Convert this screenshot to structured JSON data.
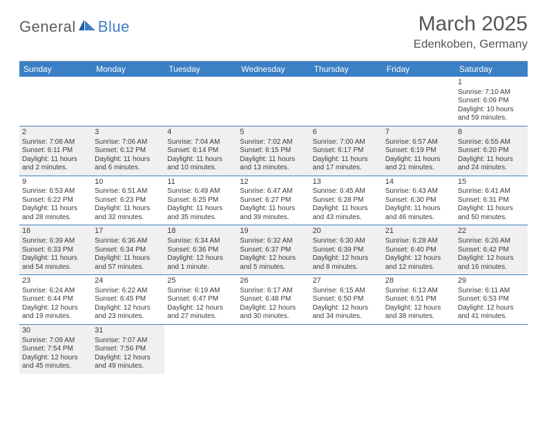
{
  "logo": {
    "general": "General",
    "blue": "Blue"
  },
  "title": "March 2025",
  "location": "Edenkoben, Germany",
  "colors": {
    "header_bg": "#3b7fc4",
    "header_text": "#ffffff",
    "shaded_bg": "#f0f0f0",
    "row_border": "#3b7fc4",
    "text": "#3a3a3a",
    "title_text": "#555555"
  },
  "day_headers": [
    "Sunday",
    "Monday",
    "Tuesday",
    "Wednesday",
    "Thursday",
    "Friday",
    "Saturday"
  ],
  "weeks": [
    [
      {
        "empty": true
      },
      {
        "empty": true
      },
      {
        "empty": true
      },
      {
        "empty": true
      },
      {
        "empty": true
      },
      {
        "empty": true
      },
      {
        "num": "1",
        "shaded": false,
        "sunrise": "Sunrise: 7:10 AM",
        "sunset": "Sunset: 6:09 PM",
        "day1": "Daylight: 10 hours",
        "day2": "and 59 minutes."
      }
    ],
    [
      {
        "num": "2",
        "shaded": true,
        "sunrise": "Sunrise: 7:08 AM",
        "sunset": "Sunset: 6:11 PM",
        "day1": "Daylight: 11 hours",
        "day2": "and 2 minutes."
      },
      {
        "num": "3",
        "shaded": true,
        "sunrise": "Sunrise: 7:06 AM",
        "sunset": "Sunset: 6:12 PM",
        "day1": "Daylight: 11 hours",
        "day2": "and 6 minutes."
      },
      {
        "num": "4",
        "shaded": true,
        "sunrise": "Sunrise: 7:04 AM",
        "sunset": "Sunset: 6:14 PM",
        "day1": "Daylight: 11 hours",
        "day2": "and 10 minutes."
      },
      {
        "num": "5",
        "shaded": true,
        "sunrise": "Sunrise: 7:02 AM",
        "sunset": "Sunset: 6:15 PM",
        "day1": "Daylight: 11 hours",
        "day2": "and 13 minutes."
      },
      {
        "num": "6",
        "shaded": true,
        "sunrise": "Sunrise: 7:00 AM",
        "sunset": "Sunset: 6:17 PM",
        "day1": "Daylight: 11 hours",
        "day2": "and 17 minutes."
      },
      {
        "num": "7",
        "shaded": true,
        "sunrise": "Sunrise: 6:57 AM",
        "sunset": "Sunset: 6:19 PM",
        "day1": "Daylight: 11 hours",
        "day2": "and 21 minutes."
      },
      {
        "num": "8",
        "shaded": true,
        "sunrise": "Sunrise: 6:55 AM",
        "sunset": "Sunset: 6:20 PM",
        "day1": "Daylight: 11 hours",
        "day2": "and 24 minutes."
      }
    ],
    [
      {
        "num": "9",
        "shaded": false,
        "sunrise": "Sunrise: 6:53 AM",
        "sunset": "Sunset: 6:22 PM",
        "day1": "Daylight: 11 hours",
        "day2": "and 28 minutes."
      },
      {
        "num": "10",
        "shaded": false,
        "sunrise": "Sunrise: 6:51 AM",
        "sunset": "Sunset: 6:23 PM",
        "day1": "Daylight: 11 hours",
        "day2": "and 32 minutes."
      },
      {
        "num": "11",
        "shaded": false,
        "sunrise": "Sunrise: 6:49 AM",
        "sunset": "Sunset: 6:25 PM",
        "day1": "Daylight: 11 hours",
        "day2": "and 35 minutes."
      },
      {
        "num": "12",
        "shaded": false,
        "sunrise": "Sunrise: 6:47 AM",
        "sunset": "Sunset: 6:27 PM",
        "day1": "Daylight: 11 hours",
        "day2": "and 39 minutes."
      },
      {
        "num": "13",
        "shaded": false,
        "sunrise": "Sunrise: 6:45 AM",
        "sunset": "Sunset: 6:28 PM",
        "day1": "Daylight: 11 hours",
        "day2": "and 43 minutes."
      },
      {
        "num": "14",
        "shaded": false,
        "sunrise": "Sunrise: 6:43 AM",
        "sunset": "Sunset: 6:30 PM",
        "day1": "Daylight: 11 hours",
        "day2": "and 46 minutes."
      },
      {
        "num": "15",
        "shaded": false,
        "sunrise": "Sunrise: 6:41 AM",
        "sunset": "Sunset: 6:31 PM",
        "day1": "Daylight: 11 hours",
        "day2": "and 50 minutes."
      }
    ],
    [
      {
        "num": "16",
        "shaded": true,
        "sunrise": "Sunrise: 6:39 AM",
        "sunset": "Sunset: 6:33 PM",
        "day1": "Daylight: 11 hours",
        "day2": "and 54 minutes."
      },
      {
        "num": "17",
        "shaded": true,
        "sunrise": "Sunrise: 6:36 AM",
        "sunset": "Sunset: 6:34 PM",
        "day1": "Daylight: 11 hours",
        "day2": "and 57 minutes."
      },
      {
        "num": "18",
        "shaded": true,
        "sunrise": "Sunrise: 6:34 AM",
        "sunset": "Sunset: 6:36 PM",
        "day1": "Daylight: 12 hours",
        "day2": "and 1 minute."
      },
      {
        "num": "19",
        "shaded": true,
        "sunrise": "Sunrise: 6:32 AM",
        "sunset": "Sunset: 6:37 PM",
        "day1": "Daylight: 12 hours",
        "day2": "and 5 minutes."
      },
      {
        "num": "20",
        "shaded": true,
        "sunrise": "Sunrise: 6:30 AM",
        "sunset": "Sunset: 6:39 PM",
        "day1": "Daylight: 12 hours",
        "day2": "and 8 minutes."
      },
      {
        "num": "21",
        "shaded": true,
        "sunrise": "Sunrise: 6:28 AM",
        "sunset": "Sunset: 6:40 PM",
        "day1": "Daylight: 12 hours",
        "day2": "and 12 minutes."
      },
      {
        "num": "22",
        "shaded": true,
        "sunrise": "Sunrise: 6:26 AM",
        "sunset": "Sunset: 6:42 PM",
        "day1": "Daylight: 12 hours",
        "day2": "and 16 minutes."
      }
    ],
    [
      {
        "num": "23",
        "shaded": false,
        "sunrise": "Sunrise: 6:24 AM",
        "sunset": "Sunset: 6:44 PM",
        "day1": "Daylight: 12 hours",
        "day2": "and 19 minutes."
      },
      {
        "num": "24",
        "shaded": false,
        "sunrise": "Sunrise: 6:22 AM",
        "sunset": "Sunset: 6:45 PM",
        "day1": "Daylight: 12 hours",
        "day2": "and 23 minutes."
      },
      {
        "num": "25",
        "shaded": false,
        "sunrise": "Sunrise: 6:19 AM",
        "sunset": "Sunset: 6:47 PM",
        "day1": "Daylight: 12 hours",
        "day2": "and 27 minutes."
      },
      {
        "num": "26",
        "shaded": false,
        "sunrise": "Sunrise: 6:17 AM",
        "sunset": "Sunset: 6:48 PM",
        "day1": "Daylight: 12 hours",
        "day2": "and 30 minutes."
      },
      {
        "num": "27",
        "shaded": false,
        "sunrise": "Sunrise: 6:15 AM",
        "sunset": "Sunset: 6:50 PM",
        "day1": "Daylight: 12 hours",
        "day2": "and 34 minutes."
      },
      {
        "num": "28",
        "shaded": false,
        "sunrise": "Sunrise: 6:13 AM",
        "sunset": "Sunset: 6:51 PM",
        "day1": "Daylight: 12 hours",
        "day2": "and 38 minutes."
      },
      {
        "num": "29",
        "shaded": false,
        "sunrise": "Sunrise: 6:11 AM",
        "sunset": "Sunset: 6:53 PM",
        "day1": "Daylight: 12 hours",
        "day2": "and 41 minutes."
      }
    ],
    [
      {
        "num": "30",
        "shaded": true,
        "sunrise": "Sunrise: 7:09 AM",
        "sunset": "Sunset: 7:54 PM",
        "day1": "Daylight: 12 hours",
        "day2": "and 45 minutes."
      },
      {
        "num": "31",
        "shaded": true,
        "sunrise": "Sunrise: 7:07 AM",
        "sunset": "Sunset: 7:56 PM",
        "day1": "Daylight: 12 hours",
        "day2": "and 49 minutes."
      },
      {
        "empty": true
      },
      {
        "empty": true
      },
      {
        "empty": true
      },
      {
        "empty": true
      },
      {
        "empty": true
      }
    ]
  ]
}
